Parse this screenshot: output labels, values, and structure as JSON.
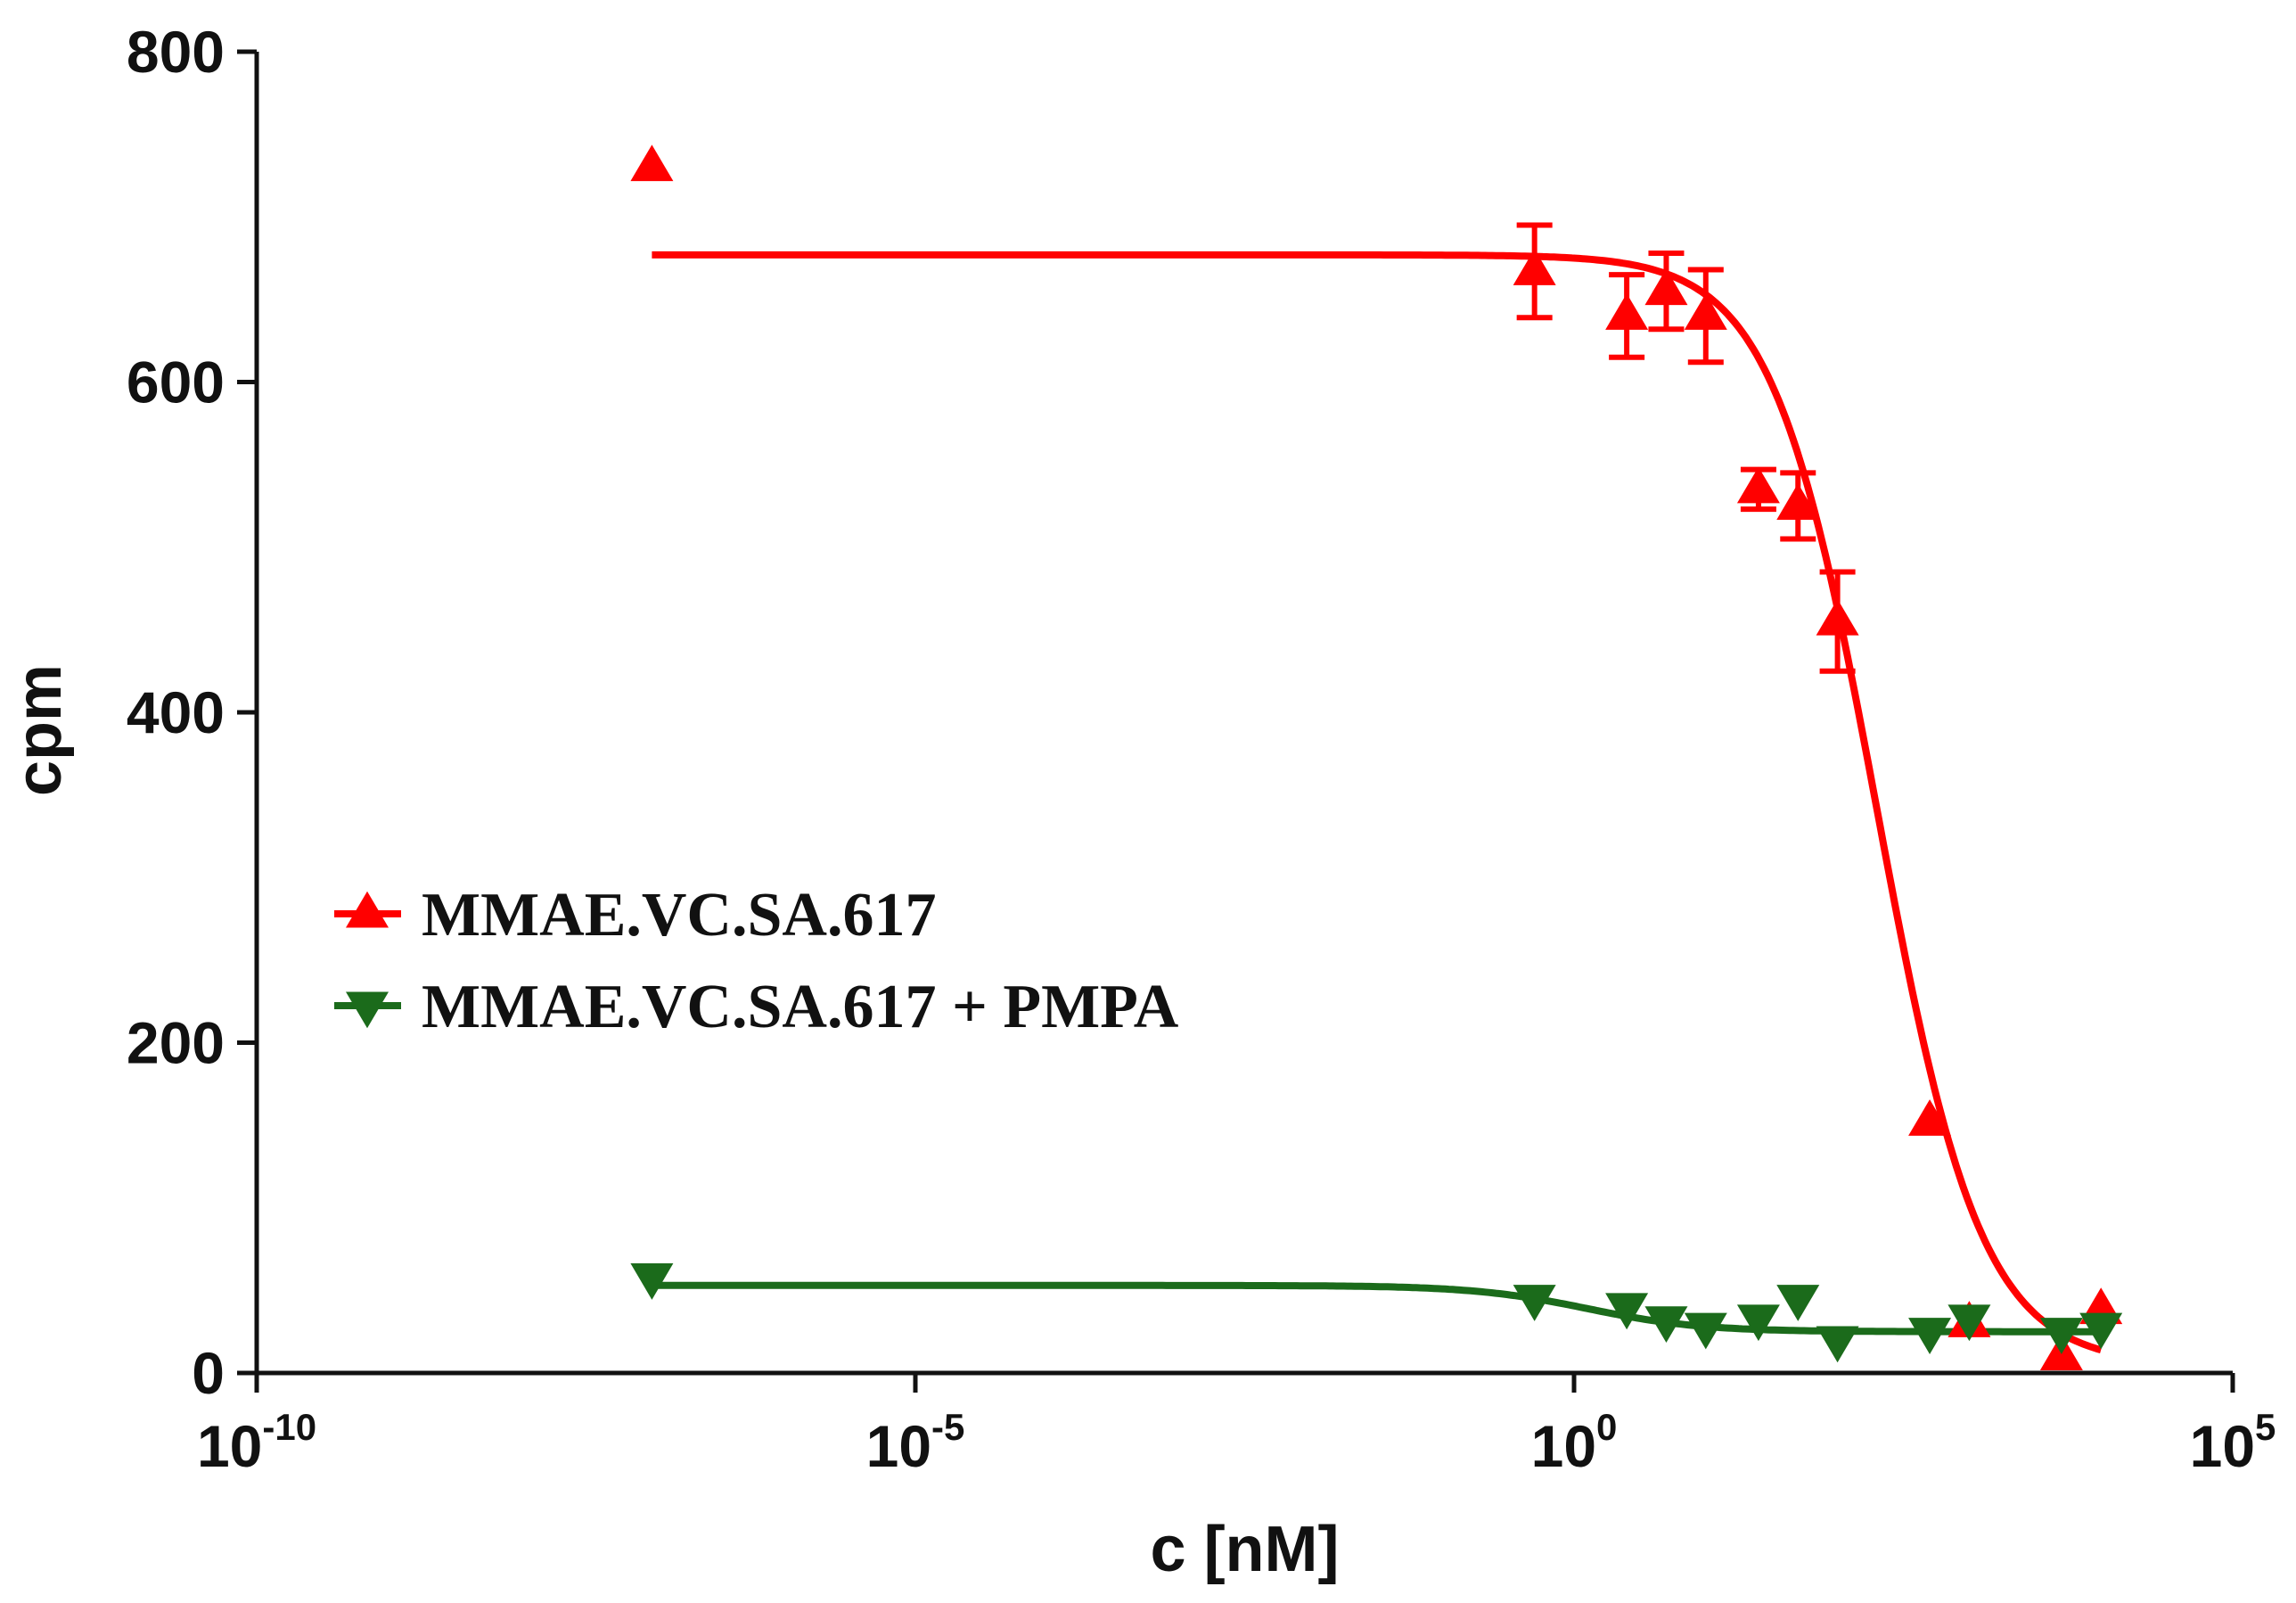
{
  "chart_data": {
    "type": "scatter",
    "title": "",
    "xlabel": "c [nM]",
    "ylabel": "cpm",
    "xscale": "log10",
    "xlim_log10": [
      -10,
      5
    ],
    "ylim": [
      0,
      800
    ],
    "yticks": [
      "0",
      "200",
      "400",
      "600",
      "800"
    ],
    "xticks": [
      {
        "base": "10",
        "exp": "-10"
      },
      {
        "base": "10",
        "exp": "-5"
      },
      {
        "base": "10",
        "exp": "0"
      },
      {
        "base": "10",
        "exp": "5"
      }
    ],
    "grid": false,
    "legend_position": "center-left",
    "series": [
      {
        "name": "MMAE.VC.SA.617",
        "color": "#ff0000",
        "marker": "triangle-up",
        "points": [
          {
            "log10_c": -7,
            "y": 730,
            "err": 0
          },
          {
            "log10_c": -0.3,
            "y": 667,
            "err": 28
          },
          {
            "log10_c": 0.4,
            "y": 640,
            "err": 25
          },
          {
            "log10_c": 0.7,
            "y": 655,
            "err": 23
          },
          {
            "log10_c": 1.0,
            "y": 640,
            "err": 28
          },
          {
            "log10_c": 1.4,
            "y": 535,
            "err": 12
          },
          {
            "log10_c": 1.7,
            "y": 525,
            "err": 20
          },
          {
            "log10_c": 2.0,
            "y": 455,
            "err": 30
          },
          {
            "log10_c": 2.7,
            "y": 152,
            "err": 0
          },
          {
            "log10_c": 3.0,
            "y": 30,
            "err": 0
          },
          {
            "log10_c": 3.7,
            "y": 10,
            "err": 0
          },
          {
            "log10_c": 4.0,
            "y": 38,
            "err": 0
          }
        ],
        "fit": {
          "top": 677,
          "bottom": 5,
          "log_ic50": 2.3,
          "hill": -1.1
        }
      },
      {
        "name": "MMAE.VC.SA.617 + PMPA",
        "color": "#1b6b1b",
        "marker": "triangle-down",
        "points": [
          {
            "log10_c": -7,
            "y": 58
          },
          {
            "log10_c": -0.3,
            "y": 45
          },
          {
            "log10_c": 0.4,
            "y": 40
          },
          {
            "log10_c": 0.7,
            "y": 32
          },
          {
            "log10_c": 1.0,
            "y": 28
          },
          {
            "log10_c": 1.4,
            "y": 33
          },
          {
            "log10_c": 1.7,
            "y": 45
          },
          {
            "log10_c": 2.0,
            "y": 20
          },
          {
            "log10_c": 2.7,
            "y": 25
          },
          {
            "log10_c": 3.0,
            "y": 33
          },
          {
            "log10_c": 3.7,
            "y": 25
          },
          {
            "log10_c": 4.0,
            "y": 28
          }
        ],
        "fit": {
          "top": 53,
          "bottom": 25,
          "log_ic50": 0.1,
          "hill": -1.0
        }
      }
    ]
  }
}
